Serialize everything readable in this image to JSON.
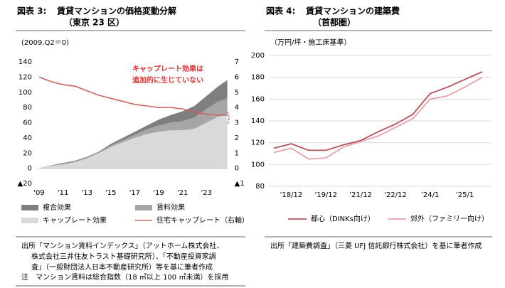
{
  "chart_data": [
    {
      "type": "stacked-area-line",
      "figure_label": "図表 3:",
      "title_lines": [
        "賃貸マンションの価格変動分解",
        "（東京 23 区）"
      ],
      "y_label": "(2009.Q2＝0)",
      "x": [
        2009,
        2010,
        2011,
        2012,
        2013,
        2014,
        2015,
        2016,
        2017,
        2018,
        2019,
        2020,
        2021,
        2022,
        2023,
        2024,
        2024.75
      ],
      "xlim": [
        2009,
        2024.75
      ],
      "xticks": [
        {
          "value": 2009,
          "label": "'09"
        },
        {
          "value": 2011,
          "label": "'11"
        },
        {
          "value": 2013,
          "label": "'13"
        },
        {
          "value": 2015,
          "label": "'15"
        },
        {
          "value": 2017,
          "label": "'17"
        },
        {
          "value": 2019,
          "label": "'19"
        },
        {
          "value": 2021,
          "label": "'21"
        },
        {
          "value": 2023,
          "label": "'23"
        }
      ],
      "ylim": [
        -20,
        140
      ],
      "yticks": [
        {
          "value": -20,
          "label": "▲20"
        },
        0,
        20,
        40,
        60,
        80,
        100,
        120,
        140
      ],
      "y2lim": [
        -1,
        7
      ],
      "y2ticks": [
        {
          "value": -1,
          "label": "▲1"
        },
        0,
        1,
        2,
        3,
        4,
        5,
        6,
        7
      ],
      "series": [
        {
          "name": "複合効果",
          "kind": "area",
          "color": "#7f7f7f",
          "values": [
            0,
            0,
            1,
            1,
            1,
            1,
            2,
            3,
            4,
            5,
            8,
            10,
            13,
            15,
            17,
            20,
            24
          ]
        },
        {
          "name": "賃料効果",
          "kind": "area",
          "color": "#a6a6a6",
          "values": [
            0,
            1,
            1,
            1,
            1,
            1,
            2,
            3,
            4,
            6,
            8,
            10,
            12,
            15,
            18,
            20,
            22
          ]
        },
        {
          "name": "キャップレート効果",
          "kind": "area",
          "color": "#d9d9d9",
          "values": [
            0,
            3,
            5,
            8,
            13,
            20,
            28,
            34,
            40,
            45,
            48,
            50,
            50,
            52,
            60,
            68,
            70
          ]
        },
        {
          "name": "住宅キャップレート（右軸）",
          "kind": "line",
          "axis": "y2",
          "color": "#d0605e",
          "values": [
            6,
            5.7,
            5.5,
            5.4,
            5.1,
            4.8,
            4.6,
            4.4,
            4.2,
            4.1,
            4.0,
            4.0,
            3.9,
            3.7,
            3.55,
            3.5,
            3.5
          ]
        }
      ],
      "annotation_lines": [
        "キャップレート効果は",
        "追加的に生じていない"
      ],
      "annotation_color": "#e03030",
      "grid": false,
      "source_lines": [
        "出所「マンション賃料インデックス」（アットホーム株式会社、",
        "株式会社三井住友トラスト基礎研究所）、「不動産投資家調",
        "査」（一般財団法人日本不動産研究所）等を基に筆者作成"
      ],
      "note": "注　マンション賃料は総合指数（18 ㎡以上 100 ㎡未満）を採用"
    },
    {
      "type": "line",
      "figure_label": "図表 4:",
      "title_lines": [
        "賃貸マンションの建築費",
        "（首都圏）"
      ],
      "y_label": "（万円/坪・施工床基準）",
      "categories": [
        null,
        "'18/12",
        null,
        "'19/12",
        null,
        "'21/12",
        null,
        "'22/12",
        null,
        "'24/1",
        null,
        "'25/1",
        null
      ],
      "ylim": [
        80,
        200
      ],
      "yticks": [
        80,
        100,
        120,
        140,
        160,
        180,
        200
      ],
      "grid": true,
      "series": [
        {
          "name": "都心（DINKs向け）",
          "color": "#b5525a",
          "values": [
            115,
            119,
            113,
            113,
            118,
            122,
            130,
            137,
            146,
            165,
            171,
            178,
            185
          ]
        },
        {
          "name": "郊外（ファミリー向け）",
          "color": "#e8a0a8",
          "values": [
            111,
            115,
            105,
            106,
            116,
            121,
            126,
            134,
            142,
            160,
            163,
            171,
            180
          ]
        }
      ],
      "source_lines": [
        "出所「建築費調査」（三菱 UFJ 信託銀行株式会社）を基に筆者作成"
      ]
    }
  ]
}
